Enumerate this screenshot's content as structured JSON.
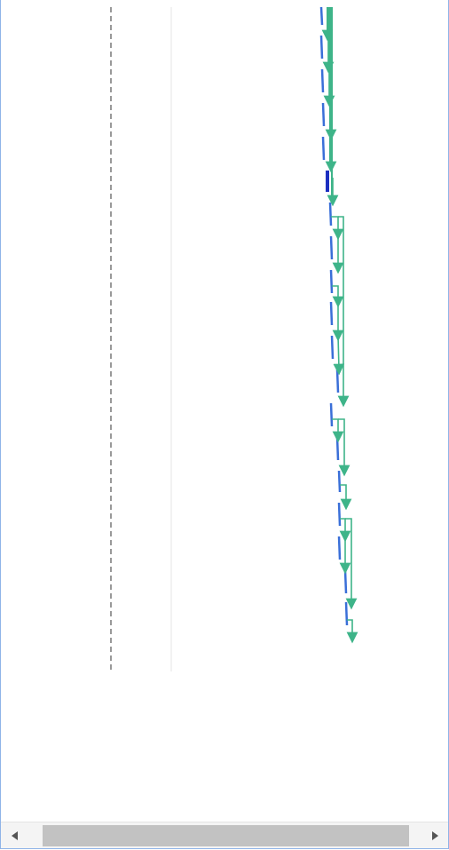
{
  "chart_data": {
    "type": "gantt-dependency-lines",
    "colors": {
      "dependency": "#3eb489",
      "task_bar": "#3a6fd8",
      "selected_task_bar": "#1c2fc0",
      "today_line": "#999999",
      "grid_line": "#e6e6e6"
    },
    "task_count": 19
  },
  "scrollbar": {
    "left_icon": "triangle-left-icon",
    "right_icon": "triangle-right-icon"
  }
}
